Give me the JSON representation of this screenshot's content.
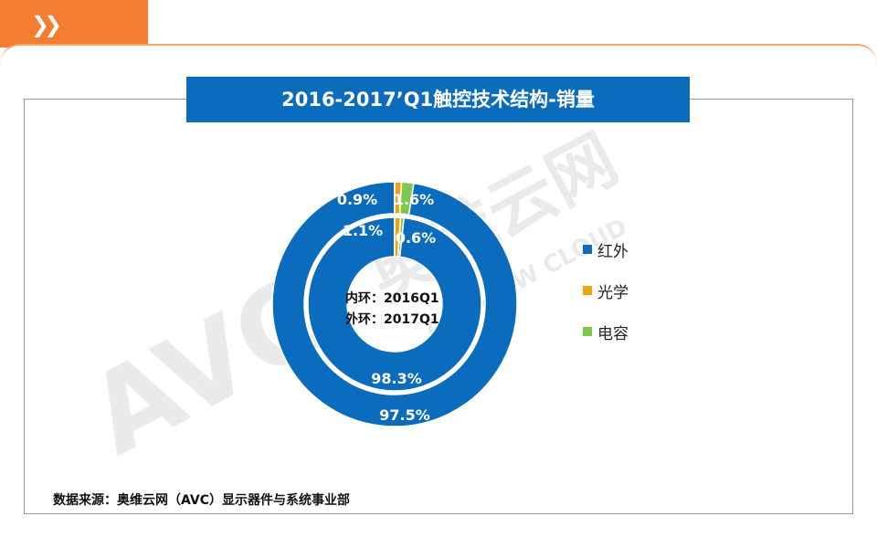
{
  "header": {
    "tab_icon": "double-chevron-right-icon"
  },
  "title": "2016-2017’Q1触控技术结构-销量",
  "watermark": {
    "brand_cn": "奥维云网",
    "brand_en": "ALL VIEW CLOUD",
    "logo": "AVC"
  },
  "center_label": {
    "line1": "内环：2016Q1",
    "line2": "外环：2017Q1"
  },
  "colors": {
    "红外": "#0b6bbd",
    "光学": "#f0a30a",
    "电容": "#7ec850",
    "accent": "#f47d31"
  },
  "chart_data": {
    "type": "donut",
    "categories": [
      "红外",
      "光学",
      "电容"
    ],
    "series": [
      {
        "name": "2016Q1",
        "ring": "inner",
        "values": [
          98.3,
          1.1,
          0.6
        ],
        "labels": [
          "98.3%",
          "1.1%",
          "0.6%"
        ]
      },
      {
        "name": "2017Q1",
        "ring": "outer",
        "values": [
          97.5,
          0.9,
          1.6
        ],
        "labels": [
          "97.5%",
          "0.9%",
          "1.6%"
        ]
      }
    ],
    "legend": {
      "position": "right",
      "items": [
        "红外",
        "光学",
        "电容"
      ]
    }
  },
  "source": "数据来源：奥维云网（AVC）显示器件与系统事业部"
}
